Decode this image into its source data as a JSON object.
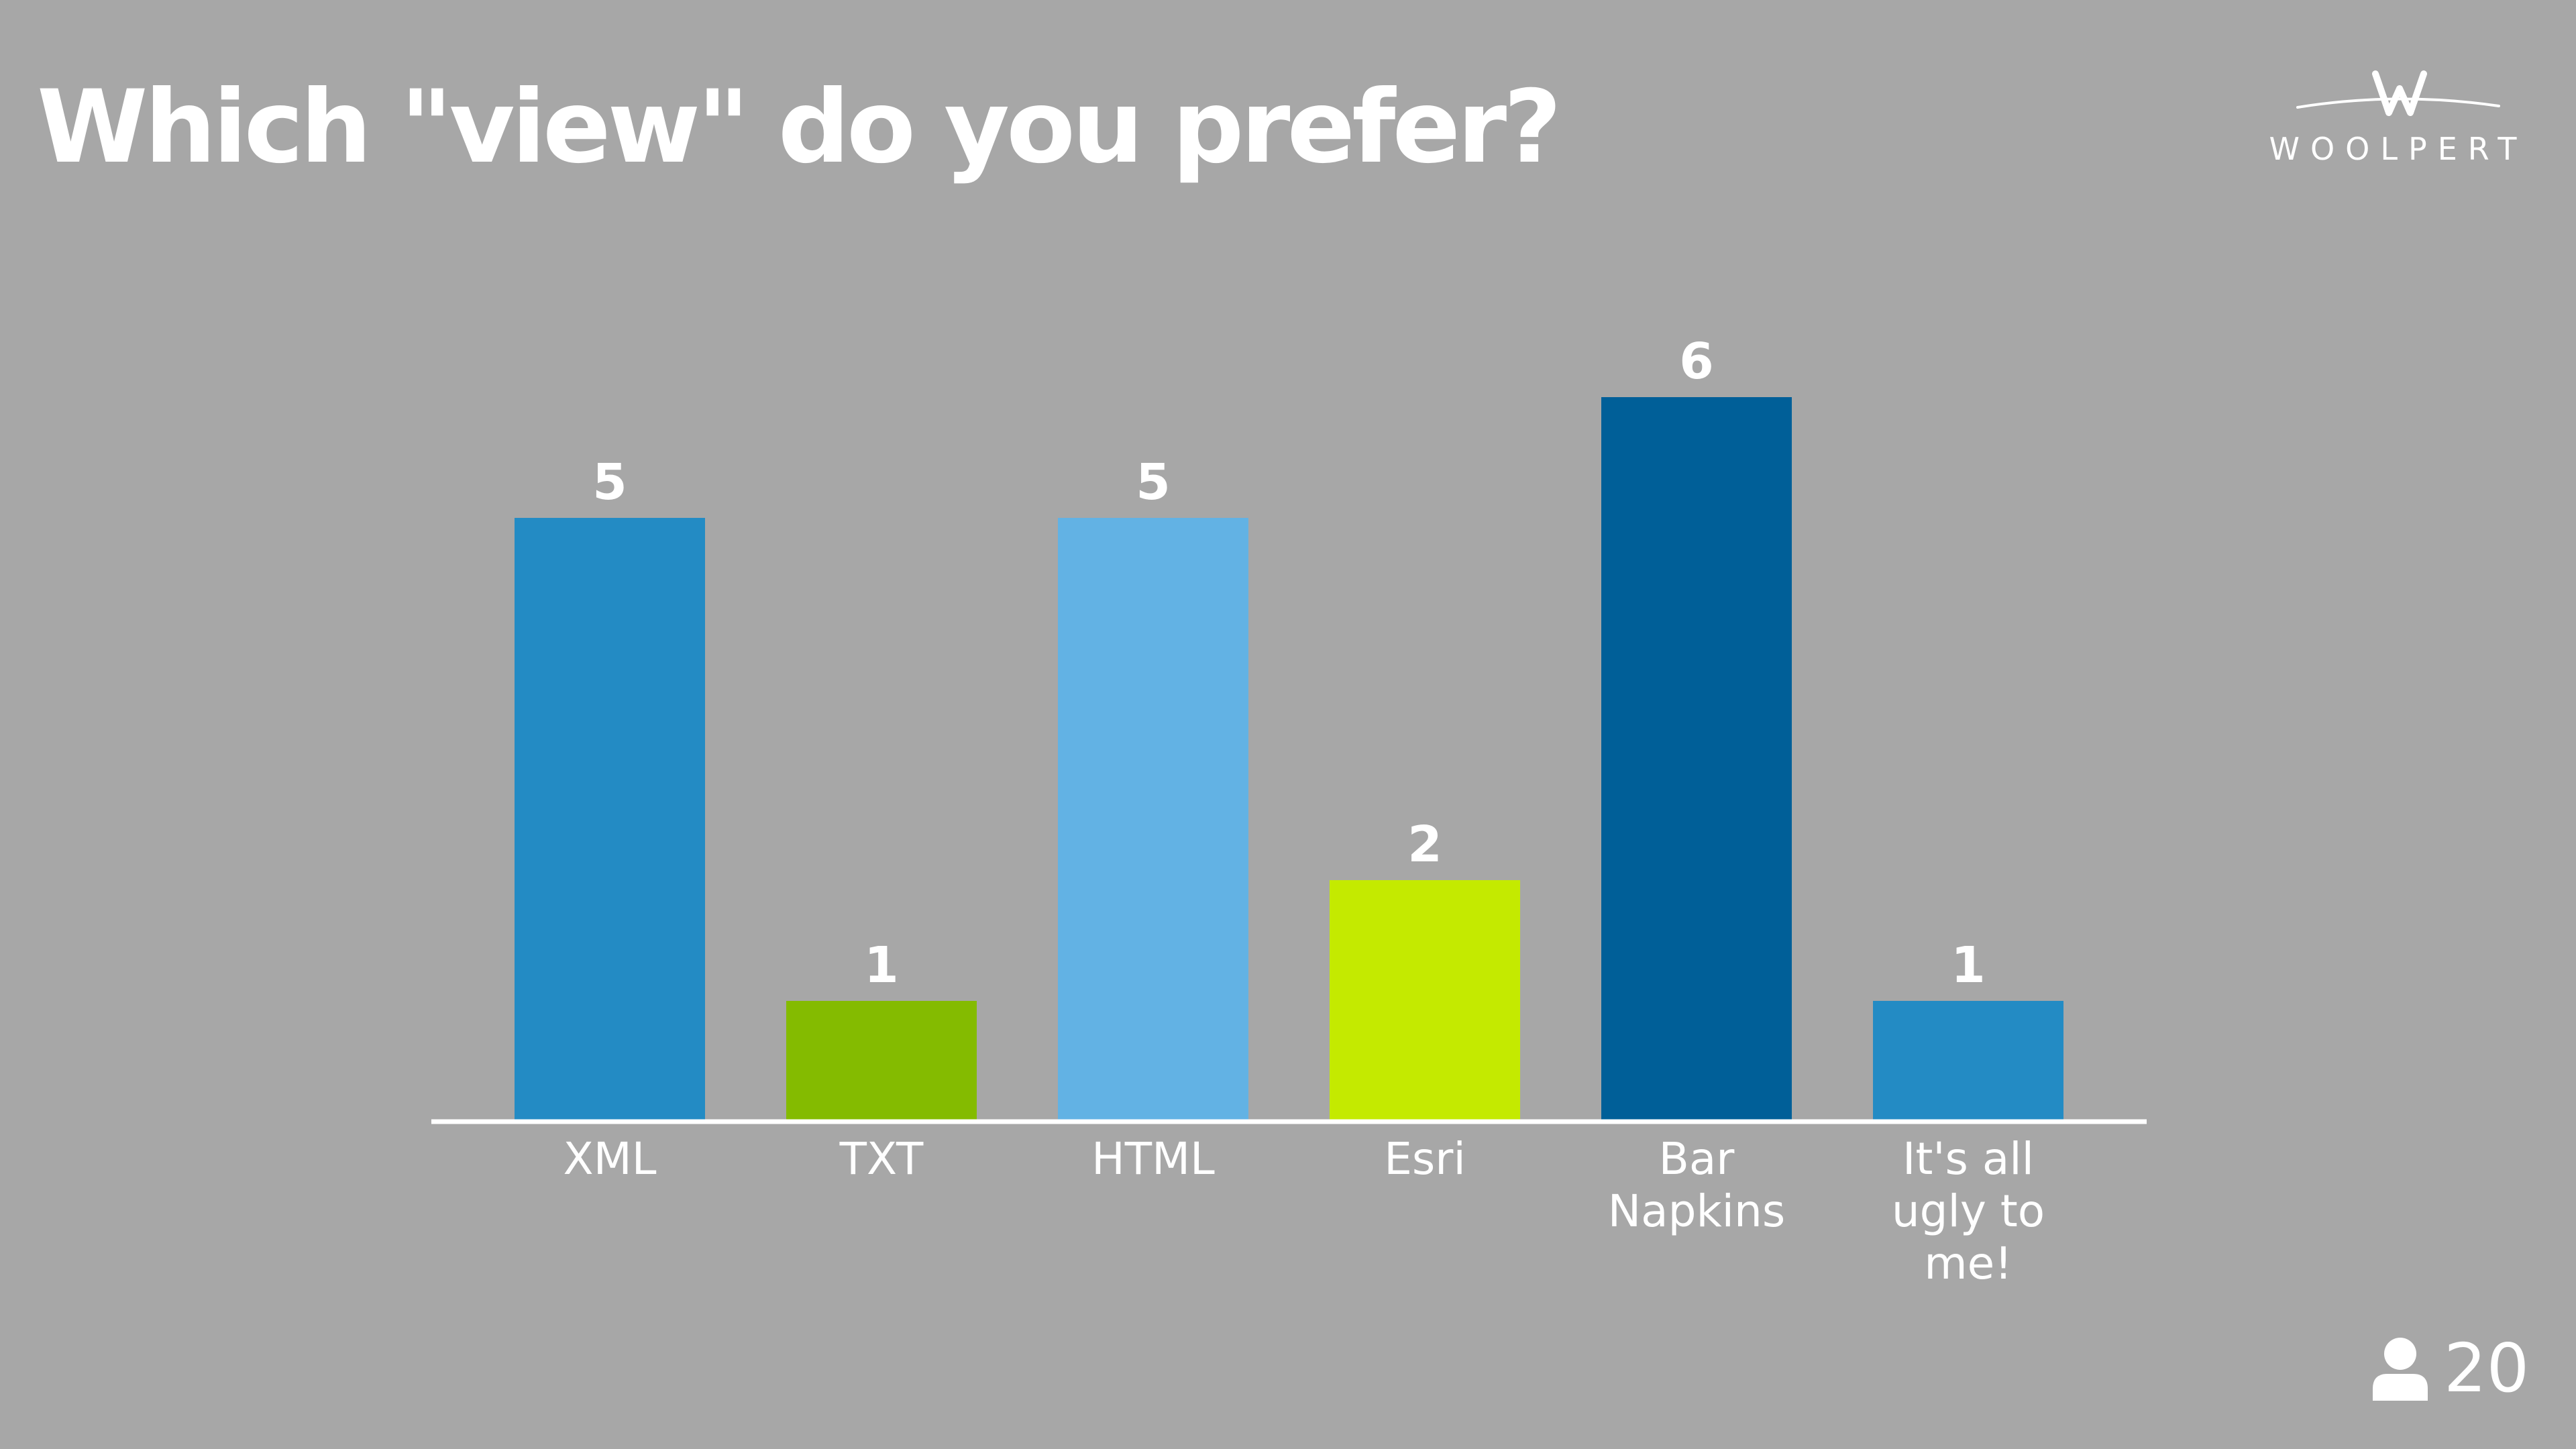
{
  "slide": {
    "title": "Which \"view\" do you prefer?",
    "logo_text": "WOOLPERT",
    "participants_icon": "person-icon",
    "participants_count": "20",
    "background_color": "#a7a7a7"
  },
  "chart_data": {
    "type": "bar",
    "categories": [
      "XML",
      "TXT",
      "HTML",
      "Esri",
      "Bar Napkins",
      "It's all ugly to me!"
    ],
    "category_lines": [
      [
        "XML"
      ],
      [
        "TXT"
      ],
      [
        "HTML"
      ],
      [
        "Esri"
      ],
      [
        "Bar",
        "Napkins"
      ],
      [
        "It's all",
        "ugly to",
        "me!"
      ]
    ],
    "values": [
      5,
      1,
      5,
      2,
      6,
      1
    ],
    "colors": [
      "#238bc4",
      "#84bb00",
      "#62b2e4",
      "#c4ea00",
      "#005f98",
      "#238bc4"
    ],
    "title": "Which \"view\" do you prefer?",
    "xlabel": "",
    "ylabel": "",
    "ylim": [
      0,
      6
    ],
    "grid": false,
    "data_labels": true
  }
}
